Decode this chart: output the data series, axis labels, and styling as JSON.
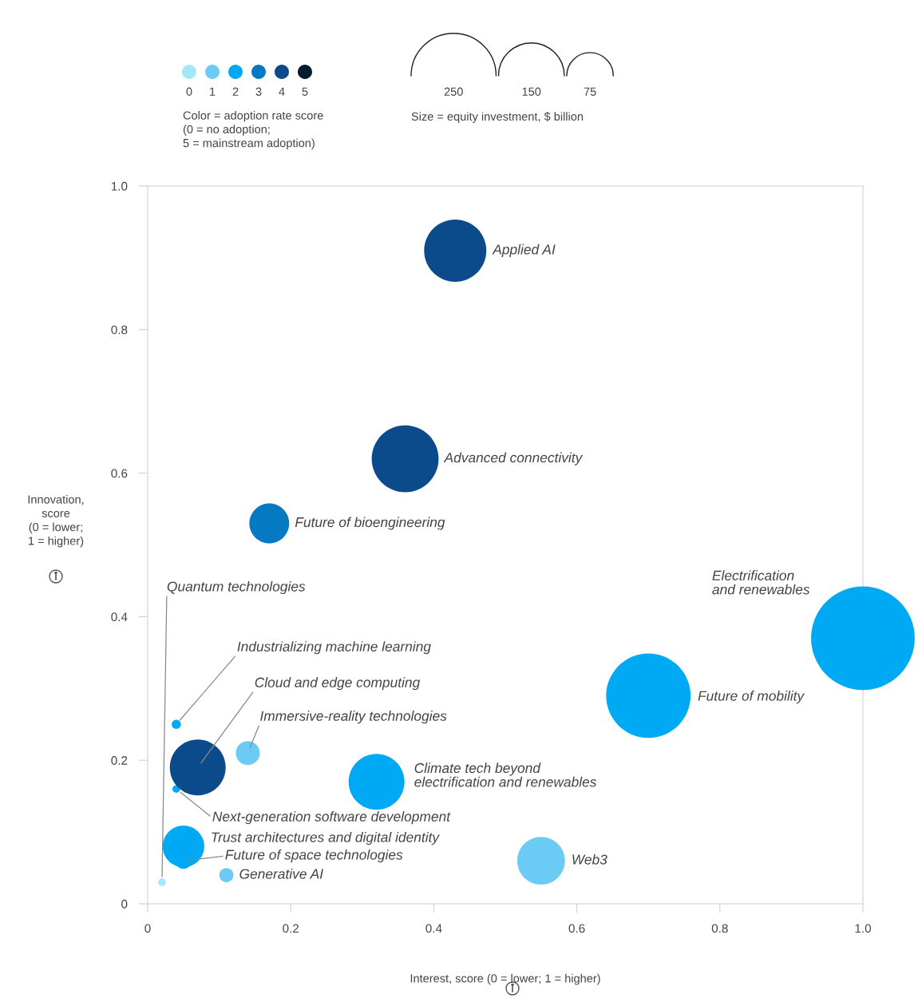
{
  "chart_data": {
    "type": "bubble",
    "xlabel": "Interest, score (0 = lower; 1 = higher)",
    "ylabel": "Innovation,\nscore\n(0 = lower;\n1 = higher)",
    "legend_title": "Color = adoption rate score\n(0 = no adoption;\n5 = mainstream adoption)",
    "legend": "top left",
    "xlim": [
      0,
      1.0
    ],
    "ylim": [
      0,
      1.0
    ],
    "xticks": [
      0,
      0.2,
      0.4,
      0.6,
      0.8,
      {
        "value": 1,
        "label": "1.0"
      }
    ],
    "yticks": [
      0,
      0.2,
      0.4,
      0.6,
      0.8,
      {
        "value": 1,
        "label": "1.0"
      }
    ],
    "size_legend": [
      250,
      150,
      75
    ],
    "series": [
      {
        "name": "0",
        "color": "#a6e6fb",
        "x": [
          0.02
        ],
        "values": [
          0.03
        ],
        "sizes": [
          2
        ]
      },
      {
        "name": "1",
        "color": "#6ccbf4",
        "x": [
          0.14,
          0.11,
          0.55
        ],
        "values": [
          0.21,
          0.04,
          0.06
        ],
        "sizes": [
          20,
          7,
          79
        ]
      },
      {
        "name": "2",
        "color": "#00a9f4",
        "x": [
          1.0,
          0.7,
          0.32,
          0.04,
          0.04,
          0.05,
          0.05
        ],
        "values": [
          0.37,
          0.29,
          0.17,
          0.25,
          0.16,
          0.08,
          0.06
        ],
        "sizes": [
          372,
          247,
          108,
          3,
          2,
          60,
          9
        ]
      },
      {
        "name": "3",
        "color": "#0679c3",
        "x": [
          0.17
        ],
        "values": [
          0.53
        ],
        "sizes": [
          55
        ]
      },
      {
        "name": "4",
        "color": "#0b4b8c",
        "x": [
          0.43,
          0.36,
          0.07
        ],
        "values": [
          0.91,
          0.62,
          0.19
        ],
        "sizes": [
          134,
          155,
          108
        ]
      },
      {
        "name": "5",
        "color": "#051c2c"
      }
    ],
    "annotations": [
      "Size = equity investment, $ billion",
      {
        "text": "Quantum technologies",
        "x": 0.02,
        "y": 0.03
      },
      {
        "text": "Immersive-reality technologies",
        "x": 0.14,
        "y": 0.21
      },
      {
        "text": "Generative AI",
        "x": 0.11,
        "y": 0.04
      },
      {
        "text": "Web3",
        "x": 0.55,
        "y": 0.06
      },
      "Electrification\nand renewables",
      "Future of mobility",
      {
        "text": "Climate tech beyond\nelectrification and renewables",
        "x": 0.32,
        "y": 0.17
      },
      {
        "text": "Industrializing machine learning",
        "x": 0.04,
        "y": 0.25
      },
      {
        "text": "Next-generation software development",
        "x": 0.04,
        "y": 0.16
      },
      {
        "text": "Trust architectures and digital identity",
        "x": 0.05,
        "y": 0.08
      },
      {
        "text": "Future of space technologies",
        "x": 0.05,
        "y": 0.06
      },
      {
        "text": "Future of bioengineering",
        "x": 0.17,
        "y": 0.53
      },
      {
        "text": "Applied AI",
        "x": 0.43,
        "y": 0.91
      },
      {
        "text": "Advanced connectivity",
        "x": 0.36,
        "y": 0.62
      },
      {
        "text": "Cloud and edge computing",
        "x": 0.07,
        "y": 0.19
      }
    ]
  }
}
